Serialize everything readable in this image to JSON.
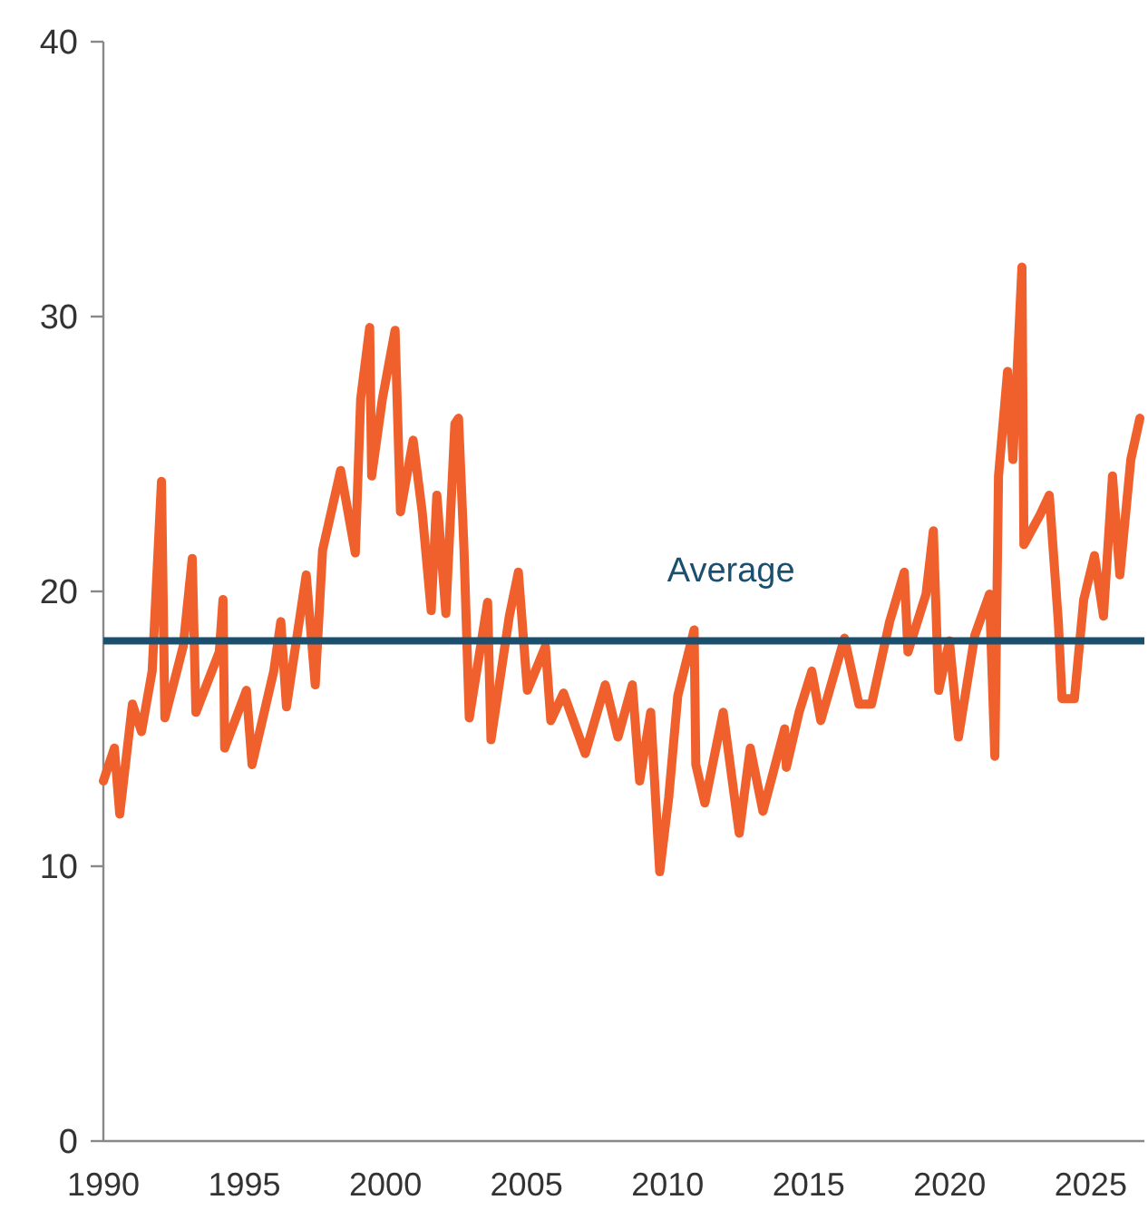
{
  "chart_data": {
    "type": "line",
    "x": [
      1990.0,
      1990.39,
      1990.58,
      1991.03,
      1991.35,
      1991.73,
      1992.06,
      1992.18,
      1992.83,
      1993.15,
      1993.28,
      1994.11,
      1994.24,
      1994.3,
      1995.07,
      1995.27,
      1996.04,
      1996.29,
      1996.49,
      1997.19,
      1997.51,
      1997.77,
      1998.41,
      1998.93,
      1999.12,
      1999.44,
      1999.51,
      1999.89,
      2000.34,
      2000.53,
      2000.98,
      2001.3,
      2001.62,
      2001.82,
      2002.14,
      2002.46,
      2002.59,
      2002.78,
      2002.97,
      2003.62,
      2003.74,
      2004.39,
      2004.71,
      2005.03,
      2005.67,
      2005.86,
      2006.31,
      2007.08,
      2007.79,
      2008.24,
      2008.75,
      2009.01,
      2009.4,
      2009.72,
      2010.04,
      2010.36,
      2010.94,
      2011.0,
      2011.32,
      2011.97,
      2012.54,
      2012.93,
      2013.38,
      2014.15,
      2014.21,
      2014.66,
      2015.11,
      2015.43,
      2016.27,
      2016.78,
      2017.23,
      2017.87,
      2018.39,
      2018.52,
      2019.16,
      2019.42,
      2019.61,
      2019.99,
      2020.31,
      2020.89,
      2021.41,
      2021.6,
      2021.73,
      2022.05,
      2022.24,
      2022.56,
      2022.63,
      2023.21,
      2023.53,
      2023.85,
      2023.98,
      2024.42,
      2024.75,
      2025.13,
      2025.45,
      2025.77,
      2026.03,
      2026.42,
      2026.74
    ],
    "series": [
      {
        "color": "#f0602d",
        "values": [
          13.1,
          14.3,
          11.9,
          15.9,
          14.9,
          17.1,
          24.0,
          15.4,
          18.0,
          21.2,
          15.6,
          17.8,
          19.7,
          14.3,
          16.4,
          13.7,
          17.1,
          18.9,
          15.8,
          20.6,
          16.6,
          21.5,
          24.4,
          21.4,
          27.0,
          29.6,
          24.2,
          27.0,
          29.5,
          22.9,
          25.5,
          22.9,
          19.3,
          23.5,
          19.2,
          26.1,
          26.3,
          21.6,
          15.4,
          19.6,
          14.6,
          19.1,
          20.7,
          16.4,
          18.0,
          15.3,
          16.3,
          14.1,
          16.6,
          14.7,
          16.6,
          13.1,
          15.6,
          9.8,
          12.5,
          16.2,
          18.6,
          13.7,
          12.3,
          15.6,
          11.2,
          14.3,
          12.0,
          15.0,
          13.6,
          15.6,
          17.1,
          15.3,
          18.3,
          15.9,
          15.9,
          18.9,
          20.7,
          17.8,
          19.9,
          22.2,
          16.4,
          18.2,
          14.7,
          18.4,
          19.9,
          14.0,
          24.2,
          28.0,
          24.8,
          31.8,
          21.7,
          22.8,
          23.5,
          18.9,
          16.1,
          16.1,
          19.7,
          21.3,
          19.1,
          24.2,
          20.6,
          24.8,
          26.3
        ]
      }
    ],
    "xlim": [
      1990,
      2026.9
    ],
    "xticks": [
      1990,
      1995,
      2000,
      2005,
      2010,
      2015,
      2020,
      2025
    ],
    "ylim": [
      0,
      40
    ],
    "yticks": [
      0,
      10,
      20,
      30,
      40
    ],
    "ref_lines": [
      {
        "axis": "y",
        "value": 18.2,
        "label": "Average",
        "color": "#1b4f6e"
      }
    ],
    "grid": false
  }
}
